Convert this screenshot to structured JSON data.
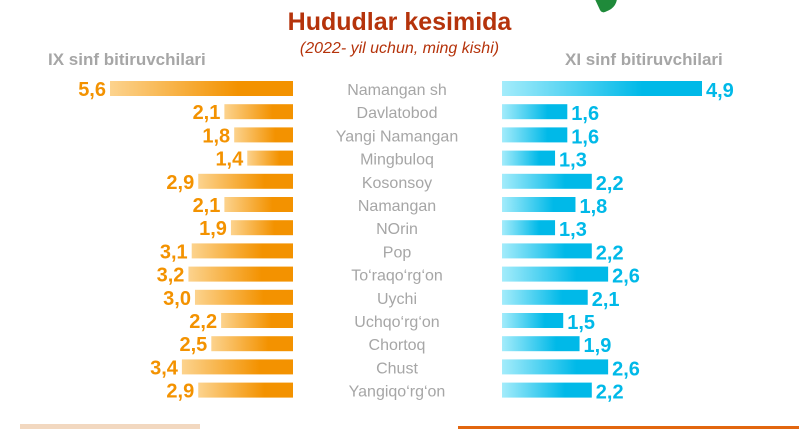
{
  "chart_data": {
    "type": "bar",
    "title": "Hududlar kesimida",
    "subtitle": "(2022- yil uchun, ming kishi)",
    "categories": [
      "Namangan sh",
      "Davlatobod",
      "Yangi Namangan",
      "Mingbuloq",
      "Kosonsoy",
      "Namangan",
      "NOrin",
      "Pop",
      "To‘raqo‘rg‘on",
      "Uychi",
      "Uchqo‘rg‘on",
      "Chortoq",
      "Chust",
      "Yangiqo‘rg‘on"
    ],
    "series": [
      {
        "name": "IX sinf bitiruvchilari",
        "color": "#f39200",
        "labels": [
          "5,6",
          "2,1",
          "1,8",
          "1,4",
          "2,9",
          "2,1",
          "1,9",
          "3,1",
          "3,2",
          "3,0",
          "2,2",
          "2,5",
          "3,4",
          "2,9"
        ],
        "values": [
          5.6,
          2.1,
          1.8,
          1.4,
          2.9,
          2.1,
          1.9,
          3.1,
          3.2,
          3.0,
          2.2,
          2.5,
          3.4,
          2.9
        ]
      },
      {
        "name": "XI sinf bitiruvchilari",
        "color": "#00b9e8",
        "labels": [
          "4,9",
          "1,6",
          "1,6",
          "1,3",
          "2,2",
          "1,8",
          "1,3",
          "2,2",
          "2,6",
          "2,1",
          "1,5",
          "1,9",
          "2,6",
          "2,2"
        ],
        "values": [
          4.9,
          1.6,
          1.6,
          1.3,
          2.2,
          1.8,
          1.3,
          2.2,
          2.6,
          2.1,
          1.5,
          1.9,
          2.6,
          2.2
        ]
      }
    ]
  }
}
